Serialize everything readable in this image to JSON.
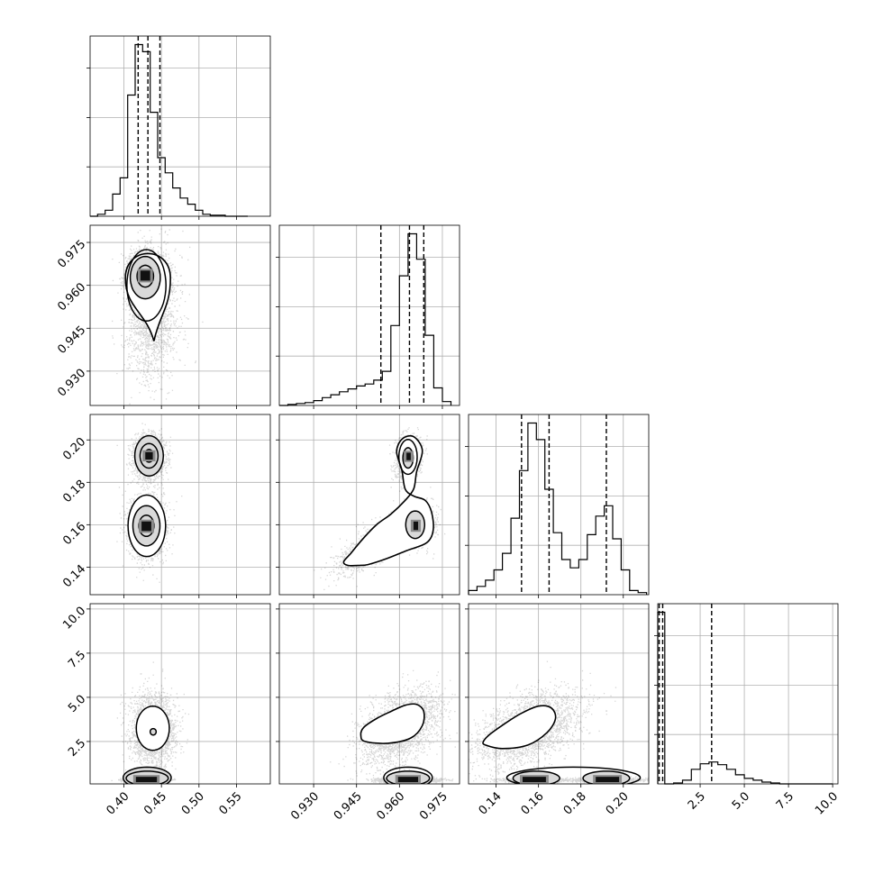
{
  "chart_data": {
    "type": "corner",
    "grid": true,
    "title": "",
    "xlabel": "",
    "ylabel": "",
    "parameters": [
      {
        "range": [
          0.355,
          0.595
        ],
        "ticks": [
          0.4,
          0.45,
          0.5,
          0.55
        ],
        "tick_labels": [
          "0.40",
          "0.45",
          "0.50",
          "0.55"
        ]
      },
      {
        "range": [
          0.918,
          0.981
        ],
        "ticks": [
          0.93,
          0.945,
          0.96,
          0.975
        ],
        "tick_labels": [
          "0.930",
          "0.945",
          "0.960",
          "0.975"
        ]
      },
      {
        "range": [
          0.127,
          0.212
        ],
        "ticks": [
          0.14,
          0.16,
          0.18,
          0.2
        ],
        "tick_labels": [
          "0.14",
          "0.16",
          "0.18",
          "0.20"
        ]
      },
      {
        "range": [
          0.1,
          10.3
        ],
        "ticks": [
          2.5,
          5.0,
          7.5,
          10.0
        ],
        "tick_labels": [
          "2.5",
          "5.0",
          "7.5",
          "10.0"
        ]
      }
    ],
    "histograms": [
      {
        "param": 0,
        "quantiles": [
          0.419,
          0.432,
          0.448
        ],
        "bin_edges": [
          0.355,
          0.365,
          0.375,
          0.385,
          0.395,
          0.405,
          0.415,
          0.425,
          0.435,
          0.445,
          0.455,
          0.465,
          0.475,
          0.485,
          0.495,
          0.505,
          0.515,
          0.525,
          0.535,
          0.545,
          0.555,
          0.565
        ],
        "counts": [
          0,
          2,
          6,
          22,
          38,
          120,
          170,
          163,
          103,
          58,
          43,
          28,
          18,
          12,
          6,
          2,
          1,
          1,
          0,
          0,
          0
        ]
      },
      {
        "param": 1,
        "quantiles": [
          0.9535,
          0.9635,
          0.9685
        ],
        "bin_edges": [
          0.918,
          0.921,
          0.924,
          0.927,
          0.93,
          0.933,
          0.936,
          0.939,
          0.942,
          0.945,
          0.948,
          0.951,
          0.954,
          0.957,
          0.96,
          0.963,
          0.966,
          0.969,
          0.972,
          0.975,
          0.978
        ],
        "counts": [
          0,
          1,
          2,
          3,
          5,
          8,
          11,
          14,
          17,
          20,
          22,
          26,
          35,
          82,
          133,
          176,
          150,
          72,
          18,
          4
        ]
      },
      {
        "param": 2,
        "quantiles": [
          0.152,
          0.165,
          0.192
        ],
        "bin_edges": [
          0.127,
          0.131,
          0.135,
          0.139,
          0.143,
          0.147,
          0.151,
          0.155,
          0.159,
          0.163,
          0.167,
          0.171,
          0.175,
          0.179,
          0.183,
          0.187,
          0.191,
          0.195,
          0.199,
          0.203,
          0.207,
          0.211
        ],
        "counts": [
          2,
          4,
          7,
          12,
          20,
          37,
          60,
          83,
          75,
          51,
          30,
          17,
          13,
          17,
          29,
          38,
          43,
          27,
          12,
          2,
          1
        ]
      },
      {
        "param": 3,
        "quantiles": [
          0.18,
          0.38,
          3.15
        ],
        "bin_edges": [
          0.1,
          0.5,
          1.0,
          1.5,
          2.0,
          2.5,
          3.0,
          3.5,
          4.0,
          4.5,
          5.0,
          5.5,
          6.0,
          6.5,
          7.0,
          7.5,
          8.0,
          8.5,
          9.0,
          9.5,
          10.0
        ],
        "counts": [
          188,
          0,
          1,
          4,
          16,
          22,
          24,
          21,
          16,
          10,
          6,
          4,
          2,
          1,
          0,
          0,
          0,
          0,
          0,
          0
        ]
      }
    ],
    "scatter_panels": [
      {
        "x_param": 0,
        "y_param": 1,
        "modes": [
          {
            "weight": 0.58,
            "mean": [
              0.428,
              0.9635
            ],
            "sd": [
              0.011,
              0.004
            ],
            "rho": 0.0
          },
          {
            "weight": 0.42,
            "mean": [
              0.437,
              0.95
            ],
            "sd": [
              0.017,
              0.011
            ],
            "rho": 0.1
          }
        ],
        "contours": [
          {
            "center": [
              0.43,
              0.96
            ],
            "radii": [
              0.026,
              0.0125
            ]
          },
          {
            "center": [
              0.4285,
              0.9627
            ],
            "radii": [
              0.02,
              0.0074
            ]
          },
          {
            "center": [
              0.4285,
              0.9632
            ],
            "radii": [
              0.011,
              0.0038
            ]
          }
        ],
        "teardrop": {
          "top_center": [
            0.432,
            0.9625
          ],
          "half_width": 0.03,
          "top_half_height": 0.0085,
          "tip": [
            0.44,
            0.9405
          ]
        },
        "peaks": [
          {
            "center": [
              0.4285,
              0.9634
            ],
            "width": 0.013,
            "height": 0.0035
          }
        ]
      },
      {
        "x_param": 0,
        "y_param": 2,
        "modes": [
          {
            "weight": 0.55,
            "mean": [
              0.43,
              0.159
            ],
            "sd": [
              0.012,
              0.007
            ],
            "rho": 0.0
          },
          {
            "weight": 0.45,
            "mean": [
              0.433,
              0.192
            ],
            "sd": [
              0.01,
              0.005
            ],
            "rho": 0.0
          }
        ],
        "contours": [
          {
            "center": [
              0.4305,
              0.1595
            ],
            "radii": [
              0.025,
              0.0145
            ]
          },
          {
            "center": [
              0.43,
              0.1595
            ],
            "radii": [
              0.018,
              0.0095
            ]
          },
          {
            "center": [
              0.43,
              0.1595
            ],
            "radii": [
              0.01,
              0.005
            ]
          },
          {
            "center": [
              0.4335,
              0.1925
            ],
            "radii": [
              0.019,
              0.0095
            ]
          },
          {
            "center": [
              0.4335,
              0.1925
            ],
            "radii": [
              0.012,
              0.0058
            ]
          },
          {
            "center": [
              0.4335,
              0.1925
            ],
            "radii": [
              0.006,
              0.003
            ]
          }
        ],
        "peaks": [
          {
            "center": [
              0.43,
              0.1593
            ],
            "width": 0.013,
            "height": 0.0045
          },
          {
            "center": [
              0.4335,
              0.1925
            ],
            "width": 0.01,
            "height": 0.0035
          }
        ]
      },
      {
        "x_param": 0,
        "y_param": 3,
        "modes": [
          {
            "weight": 0.5,
            "mean": [
              0.438,
              3.2
            ],
            "sd": [
              0.015,
              1.0
            ],
            "rho": 0.0
          },
          {
            "weight": 0.5,
            "mean": [
              0.43,
              0.35
            ],
            "sd": [
              0.012,
              0.06
            ],
            "rho": 0.0
          }
        ],
        "contours": [
          {
            "center": [
              0.4385,
              3.25
            ],
            "radii": [
              0.022,
              1.25
            ]
          },
          {
            "center": [
              0.439,
              3.05
            ],
            "radii": [
              0.004,
              0.18
            ]
          },
          {
            "center": [
              0.431,
              0.45
            ],
            "radii": [
              0.032,
              0.6
            ]
          },
          {
            "center": [
              0.431,
              0.42
            ],
            "radii": [
              0.028,
              0.4
            ]
          }
        ],
        "peaks": [
          {
            "center": [
              0.43,
              0.35
            ],
            "width": 0.028,
            "height": 0.3
          }
        ]
      },
      {
        "x_param": 1,
        "y_param": 2,
        "modes": [
          {
            "weight": 0.35,
            "mean": [
              0.963,
              0.1915
            ],
            "sd": [
              0.0022,
              0.005
            ],
            "rho": 0.2
          },
          {
            "weight": 0.35,
            "mean": [
              0.9655,
              0.16
            ],
            "sd": [
              0.003,
              0.0048
            ],
            "rho": 0.0
          },
          {
            "weight": 0.3,
            "mean": [
              0.951,
              0.1505
            ],
            "sd": [
              0.007,
              0.0065
            ],
            "rho": 0.75
          }
        ],
        "contours": [
          {
            "center": [
              0.963,
              0.192
            ],
            "radii": [
              0.0032,
              0.0082
            ]
          },
          {
            "center": [
              0.963,
              0.1915
            ],
            "radii": [
              0.0018,
              0.0048
            ]
          },
          {
            "center": [
              0.9655,
              0.16
            ],
            "radii": [
              0.0033,
              0.0065
            ]
          }
        ],
        "filled_outline": [
          [
            0.949,
            0.1412
          ],
          [
            0.9555,
            0.144
          ],
          [
            0.9625,
            0.1478
          ],
          [
            0.9695,
            0.1515
          ],
          [
            0.9718,
            0.1575
          ],
          [
            0.9712,
            0.166
          ],
          [
            0.969,
            0.1715
          ],
          [
            0.965,
            0.1735
          ],
          [
            0.962,
            0.1768
          ],
          [
            0.9608,
            0.186
          ],
          [
            0.959,
            0.1945
          ],
          [
            0.961,
            0.2005
          ],
          [
            0.965,
            0.2015
          ],
          [
            0.968,
            0.195
          ],
          [
            0.966,
            0.185
          ],
          [
            0.965,
            0.177
          ],
          [
            0.962,
            0.1715
          ],
          [
            0.957,
            0.165
          ],
          [
            0.952,
            0.16
          ],
          [
            0.947,
            0.153
          ],
          [
            0.943,
            0.1465
          ],
          [
            0.9405,
            0.1425
          ],
          [
            0.942,
            0.1408
          ],
          [
            0.946,
            0.1408
          ]
        ],
        "peaks": [
          {
            "center": [
              0.9632,
              0.1922
            ],
            "width": 0.0015,
            "height": 0.0035
          },
          {
            "center": [
              0.9657,
              0.1595
            ],
            "width": 0.0016,
            "height": 0.004
          }
        ]
      },
      {
        "x_param": 1,
        "y_param": 3,
        "modes": [
          {
            "weight": 0.55,
            "mean": [
              0.96,
              3.3
            ],
            "sd": [
              0.007,
              1.05
            ],
            "rho": 0.45
          },
          {
            "weight": 0.45,
            "mean": [
              0.963,
              0.35
            ],
            "sd": [
              0.005,
              0.06
            ],
            "rho": 0.0
          }
        ],
        "filled_outline": [
          [
            0.948,
            2.5
          ],
          [
            0.956,
            2.4
          ],
          [
            0.964,
            2.7
          ],
          [
            0.968,
            3.4
          ],
          [
            0.9685,
            4.2
          ],
          [
            0.966,
            4.6
          ],
          [
            0.962,
            4.55
          ],
          [
            0.957,
            4.2
          ],
          [
            0.952,
            3.8
          ],
          [
            0.9475,
            3.3
          ],
          [
            0.9465,
            2.85
          ]
        ],
        "contours": [
          {
            "center": [
              0.963,
              0.45
            ],
            "radii": [
              0.0085,
              0.6
            ]
          },
          {
            "center": [
              0.963,
              0.42
            ],
            "radii": [
              0.0075,
              0.4
            ]
          }
        ],
        "peaks": [
          {
            "center": [
              0.963,
              0.35
            ],
            "width": 0.007,
            "height": 0.3
          }
        ]
      },
      {
        "x_param": 2,
        "y_param": 3,
        "modes": [
          {
            "weight": 0.55,
            "mean": [
              0.155,
              3.2
            ],
            "sd": [
              0.012,
              1.05
            ],
            "rho": 0.45
          },
          {
            "weight": 0.22,
            "mean": [
              0.158,
              0.35
            ],
            "sd": [
              0.008,
              0.06
            ],
            "rho": 0.0
          },
          {
            "weight": 0.23,
            "mean": [
              0.192,
              0.35
            ],
            "sd": [
              0.008,
              0.06
            ],
            "rho": 0.0
          }
        ],
        "filled_outline": [
          [
            0.135,
            2.3
          ],
          [
            0.143,
            2.1
          ],
          [
            0.155,
            2.3
          ],
          [
            0.164,
            3.0
          ],
          [
            0.168,
            3.8
          ],
          [
            0.166,
            4.4
          ],
          [
            0.16,
            4.5
          ],
          [
            0.152,
            4.1
          ],
          [
            0.144,
            3.5
          ],
          [
            0.137,
            2.9
          ],
          [
            0.134,
            2.5
          ]
        ],
        "contours": [
          {
            "center": [
              0.1765,
              0.45
            ],
            "radii": [
              0.0315,
              0.6
            ]
          },
          {
            "center": [
              0.159,
              0.42
            ],
            "radii": [
              0.011,
              0.4
            ]
          },
          {
            "center": [
              0.192,
              0.42
            ],
            "radii": [
              0.011,
              0.4
            ]
          }
        ],
        "peaks": [
          {
            "center": [
              0.158,
              0.35
            ],
            "width": 0.011,
            "height": 0.3
          },
          {
            "center": [
              0.1925,
              0.35
            ],
            "width": 0.011,
            "height": 0.3
          }
        ]
      }
    ]
  }
}
